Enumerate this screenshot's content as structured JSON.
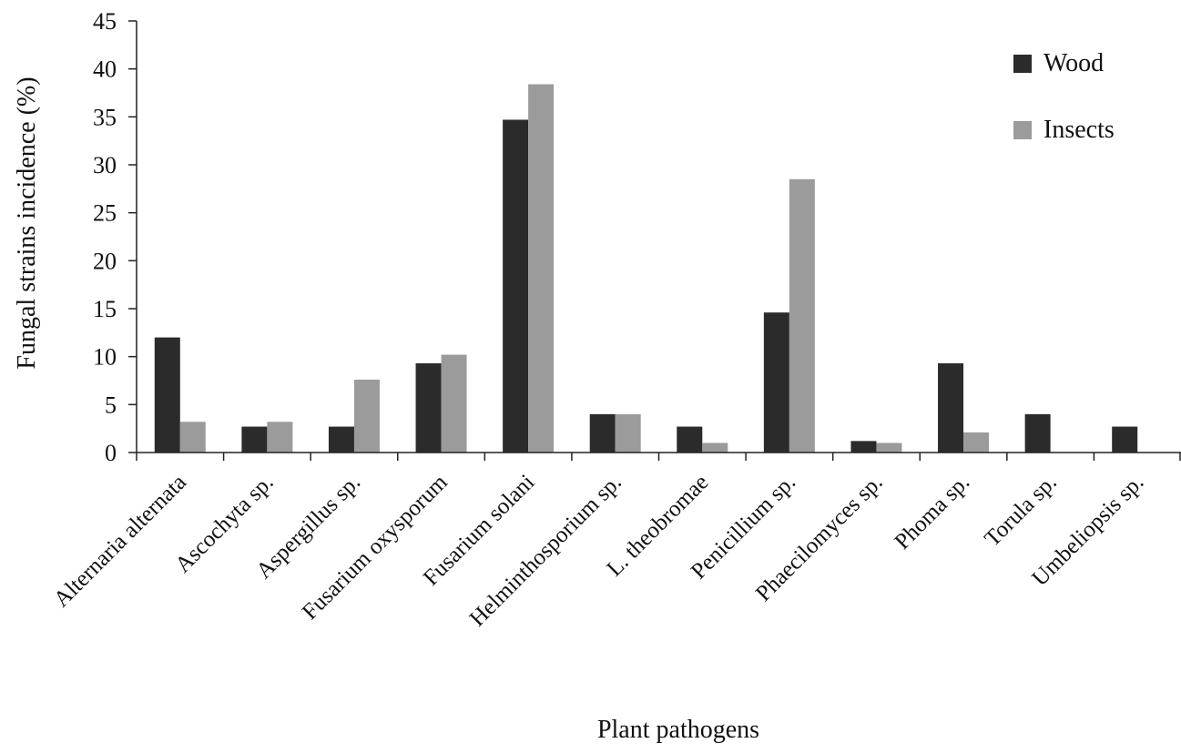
{
  "chart_data": {
    "type": "bar",
    "categories": [
      "Alternaria alternata",
      "Ascochyta sp.",
      "Aspergillus sp.",
      "Fusarium oxysporum",
      "Fusarium solani",
      "Helminthosporium sp.",
      "L. theobromae",
      "Penicillium sp.",
      "Phaecilomyces sp.",
      "Phoma sp.",
      "Torula sp.",
      "Umbeliopsis sp."
    ],
    "series": [
      {
        "name": "Wood",
        "color": "#2b2b2b",
        "values": [
          12.0,
          2.7,
          2.7,
          9.3,
          34.7,
          4.0,
          2.7,
          14.6,
          1.2,
          9.3,
          4.0,
          2.7
        ]
      },
      {
        "name": "Insects",
        "color": "#9b9b9b",
        "values": [
          3.2,
          3.2,
          7.6,
          10.2,
          38.4,
          4.0,
          1.0,
          28.5,
          1.0,
          2.1,
          0,
          0
        ]
      }
    ],
    "xlabel": "Plant pathogens",
    "ylabel": "Fungal strains incidence (%)",
    "ylim": [
      0,
      45
    ],
    "yticks": [
      "0",
      "5",
      "10",
      "15",
      "20",
      "25",
      "30",
      "35",
      "40",
      "45"
    ],
    "grid": false,
    "legend_position": "top-right"
  }
}
